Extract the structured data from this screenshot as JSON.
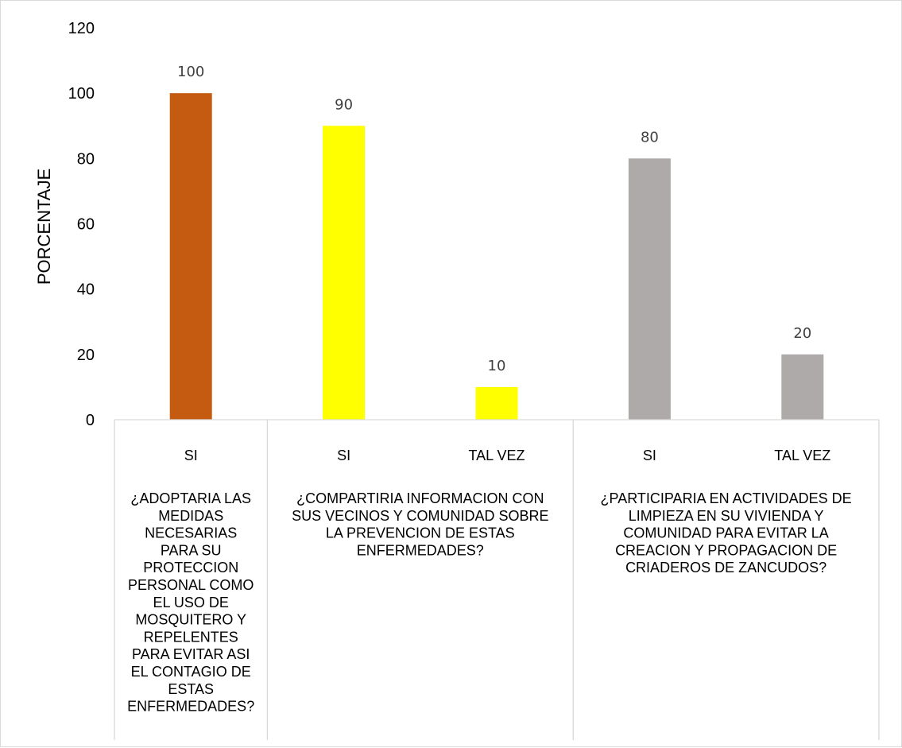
{
  "chart_data": {
    "type": "bar",
    "title": "",
    "ylabel": "PORCENTAJE",
    "xlabel": "",
    "ylim": [
      0,
      120
    ],
    "yticks": [
      0,
      20,
      40,
      60,
      80,
      100,
      120
    ],
    "grid": false,
    "legend": "none",
    "groups": [
      {
        "label_lines": [
          "¿ADOPTARIA LAS",
          "MEDIDAS",
          "NECESARIAS",
          "PARA SU",
          "PROTECCION",
          "PERSONAL COMO",
          "EL USO DE",
          "MOSQUITERO Y",
          "REPELENTES",
          "PARA EVITAR ASI",
          "EL CONTAGIO DE",
          "ESTAS",
          "ENFERMEDADES?"
        ],
        "bars": [
          {
            "category": "SI",
            "value": 100,
            "color": "#C55A11"
          }
        ]
      },
      {
        "label_lines": [
          "¿COMPARTIRIA INFORMACION CON",
          "SUS VECINOS Y COMUNIDAD SOBRE",
          "LA PREVENCION DE ESTAS",
          "ENFERMEDADES?"
        ],
        "bars": [
          {
            "category": "SI",
            "value": 90,
            "color": "#FFFF00"
          },
          {
            "category": "TAL VEZ",
            "value": 10,
            "color": "#FFFF00"
          }
        ]
      },
      {
        "label_lines": [
          "¿PARTICIPARIA EN ACTIVIDADES DE",
          "LIMPIEZA EN SU VIVIENDA Y",
          "COMUNIDAD PARA EVITAR LA",
          "CREACION Y PROPAGACION DE",
          "CRIADEROS DE ZANCUDOS?"
        ],
        "bars": [
          {
            "category": "SI",
            "value": 80,
            "color": "#AEAAAA"
          },
          {
            "category": "TAL VEZ",
            "value": 20,
            "color": "#AEAAAA"
          }
        ]
      }
    ],
    "colors": {
      "axis_line": "#d9d9d9",
      "tick_text": "#000000",
      "data_label_text": "#404040"
    }
  }
}
